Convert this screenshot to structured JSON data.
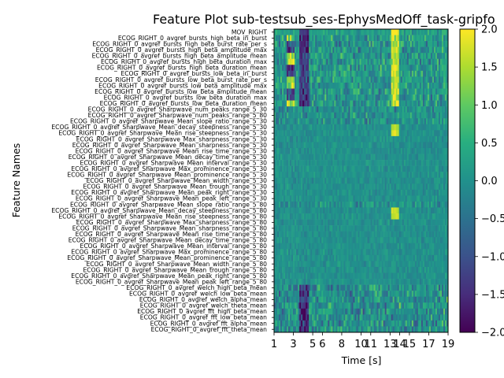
{
  "chart_data": {
    "type": "heatmap",
    "title": "Feature Plot sub-testsub_ses-EphysMedOff_task-gripfo",
    "xlabel": "Time [s]",
    "ylabel": "Feature Names",
    "x_tick_labels": [
      "1",
      "3",
      "5",
      "6",
      "8",
      "10",
      "11",
      "13",
      "14",
      "15",
      "17",
      "19"
    ],
    "x_range": [
      1,
      19
    ],
    "features": [
      "MOV_RIGHT",
      "ECOG_RIGHT_0_avgref_bursts_high_beta_in_burst",
      "ECOG_RIGHT_0_avgref_bursts_high_beta_burst_rate_per_s",
      "ECOG_RIGHT_0_avgref_bursts_high_beta_amplitude_max",
      "ECOG_RIGHT_0_avgref_bursts_high_beta_amplitude_mean",
      "ECOG_RIGHT_0_avgref_bursts_high_beta_duration_max",
      "ECOG_RIGHT_0_avgref_bursts_high_beta_duration_mean",
      "ECOG_RIGHT_0_avgref_bursts_low_beta_in_burst",
      "ECOG_RIGHT_0_avgref_bursts_low_beta_burst_rate_per_s",
      "ECOG_RIGHT_0_avgref_bursts_low_beta_amplitude_max",
      "ECOG_RIGHT_0_avgref_bursts_low_beta_amplitude_mean",
      "ECOG_RIGHT_0_avgref_bursts_low_beta_duration_max",
      "ECOG_RIGHT_0_avgref_bursts_low_beta_duration_mean",
      "ECOG_RIGHT_0_avgref_Sharpwave_num_peaks_range_5_30",
      "ECOG_RIGHT_0_avgref_Sharpwave_num_peaks_range_5_80",
      "ECOG_RIGHT_0_avgref_Sharpwave_Mean_slope_ratio_range_5_30",
      "ECOG_RIGHT_0_avgref_Sharpwave_Mean_decay_steepness_range_5_30",
      "ECOG_RIGHT_0_avgref_Sharpwave_Mean_rise_steepness_range_5_30",
      "ECOG_RIGHT_0_avgref_Sharpwave_Max_sharpness_range_5_30",
      "ECOG_RIGHT_0_avgref_Sharpwave_Mean_sharpness_range_5_30",
      "ECOG_RIGHT_0_avgref_Sharpwave_Mean_rise_time_range_5_30",
      "ECOG_RIGHT_0_avgref_Sharpwave_Mean_decay_time_range_5_30",
      "ECOG_RIGHT_0_avgref_Sharpwave_Mean_interval_range_5_30",
      "ECOG_RIGHT_0_avgref_Sharpwave_Max_prominence_range_5_30",
      "ECOG_RIGHT_0_avgref_Sharpwave_Mean_prominence_range_5_30",
      "ECOG_RIGHT_0_avgref_Sharpwave_Mean_width_range_5_30",
      "ECOG_RIGHT_0_avgref_Sharpwave_Mean_trough_range_5_30",
      "ECOG_RIGHT_0_avgref_Sharpwave_Mean_peak_right_range_5_30",
      "ECOG_RIGHT_0_avgref_Sharpwave_Mean_peak_left_range_5_30",
      "ECOG_RIGHT_0_avgref_Sharpwave_Mean_slope_ratio_range_5_80",
      "ECOG_RIGHT_0_avgref_Sharpwave_Mean_decay_steepness_range_5_80",
      "ECOG_RIGHT_0_avgref_Sharpwave_Mean_rise_steepness_range_5_80",
      "ECOG_RIGHT_0_avgref_Sharpwave_Max_sharpness_range_5_80",
      "ECOG_RIGHT_0_avgref_Sharpwave_Mean_sharpness_range_5_80",
      "ECOG_RIGHT_0_avgref_Sharpwave_Mean_rise_time_range_5_80",
      "ECOG_RIGHT_0_avgref_Sharpwave_Mean_decay_time_range_5_80",
      "ECOG_RIGHT_0_avgref_Sharpwave_Mean_interval_range_5_80",
      "ECOG_RIGHT_0_avgref_Sharpwave_Max_prominence_range_5_80",
      "ECOG_RIGHT_0_avgref_Sharpwave_Mean_prominence_range_5_80",
      "ECOG_RIGHT_0_avgref_Sharpwave_Mean_width_range_5_80",
      "ECOG_RIGHT_0_avgref_Sharpwave_Mean_trough_range_5_80",
      "ECOG_RIGHT_0_avgref_Sharpwave_Mean_peak_right_range_5_80",
      "ECOG_RIGHT_0_avgref_Sharpwave_Mean_peak_left_range_5_80",
      "ECOG_RIGHT_0_avgref_welch_high_beta_mean",
      "ECOG_RIGHT_0_avgref_welch_low_beta_mean",
      "ECOG_RIGHT_0_avgref_welch_alpha_mean",
      "ECOG_RIGHT_0_avgref_welch_theta_mean",
      "ECOG_RIGHT_0_avgref_fft_high_beta_mean",
      "ECOG_RIGHT_0_avgref_fft_low_beta_mean",
      "ECOG_RIGHT_0_avgref_fft_alpha_mean",
      "ECOG_RIGHT_0_avgref_fft_theta_mean"
    ],
    "colorbar": {
      "colormap": "viridis",
      "range": [
        -2.0,
        2.0
      ],
      "tick_labels": [
        "2.0",
        "1.5",
        "1.0",
        "0.5",
        "0.0",
        "−0.5",
        "−1.0",
        "−1.5",
        "−2.0"
      ],
      "tick_values": [
        2.0,
        1.5,
        1.0,
        0.5,
        0.0,
        -0.5,
        -1.0,
        -1.5,
        -2.0
      ]
    },
    "legend": "none",
    "grid": false
  }
}
